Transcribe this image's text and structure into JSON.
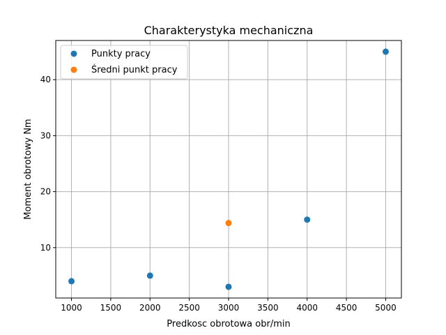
{
  "chart_data": {
    "type": "scatter",
    "title": "Charakterystyka mechaniczna",
    "xlabel": "Predkosc obrotowa obr/min",
    "ylabel": "Moment obrotowy Nm",
    "xlim": [
      800,
      5200
    ],
    "ylim": [
      1,
      47
    ],
    "x_ticks": [
      1000,
      1500,
      2000,
      2500,
      3000,
      3500,
      4000,
      4500,
      5000
    ],
    "y_ticks": [
      10,
      20,
      30,
      40
    ],
    "grid": true,
    "legend_position": "top-left",
    "series": [
      {
        "name": "Punkty pracy",
        "color": "#1f77b4",
        "points": [
          {
            "x": 1000,
            "y": 4
          },
          {
            "x": 2000,
            "y": 5
          },
          {
            "x": 3000,
            "y": 3
          },
          {
            "x": 4000,
            "y": 15
          },
          {
            "x": 5000,
            "y": 45
          }
        ]
      },
      {
        "name": "Średni punkt pracy",
        "color": "#ff7f0e",
        "points": [
          {
            "x": 3000,
            "y": 14.4
          }
        ]
      }
    ]
  }
}
